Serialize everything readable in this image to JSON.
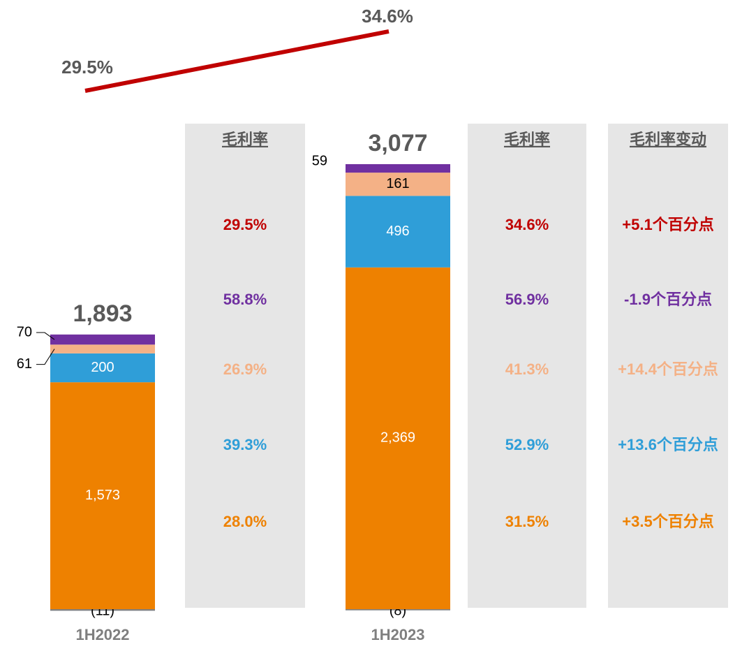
{
  "chart_data": {
    "type": "bar",
    "stacked": true,
    "categories": [
      "1H2022",
      "1H2023"
    ],
    "series": [
      {
        "color": "#808080",
        "values": [
          -11,
          -8
        ],
        "value_labels": [
          "(11)",
          "(8)"
        ]
      },
      {
        "color": "#ee8100",
        "values": [
          1573,
          2369
        ],
        "value_labels": [
          "1,573",
          "2,369"
        ]
      },
      {
        "color": "#2f9ed8",
        "values": [
          200,
          496
        ]
      },
      {
        "color": "#f4b186",
        "values": [
          61,
          161
        ]
      },
      {
        "color": "#7030a0",
        "values": [
          70,
          59
        ]
      }
    ],
    "totals": {
      "values": [
        1893,
        3077
      ],
      "value_labels": [
        "1,893",
        "3,077"
      ]
    },
    "margin_line": {
      "color": "#c00000",
      "values": [
        29.5,
        34.6
      ],
      "value_labels": [
        "29.5%",
        "34.6%"
      ]
    },
    "panels": [
      {
        "header": "毛利率",
        "colors": [
          "#c00000",
          "#7030a0",
          "#f4b186",
          "#2f9ed8",
          "#ee8100"
        ],
        "rows": [
          "29.5%",
          "58.8%",
          "26.9%",
          "39.3%",
          "28.0%"
        ]
      },
      {
        "header": "毛利率",
        "colors": [
          "#c00000",
          "#7030a0",
          "#f4b186",
          "#2f9ed8",
          "#ee8100"
        ],
        "rows": [
          "34.6%",
          "56.9%",
          "41.3%",
          "52.9%",
          "31.5%"
        ]
      },
      {
        "header": "毛利率变动",
        "colors": [
          "#c00000",
          "#7030a0",
          "#f4b186",
          "#2f9ed8",
          "#ee8100"
        ],
        "rows": [
          "+5.1个百分点",
          "-1.9个百分点",
          "+14.4个百分点",
          "+13.6个百分点",
          "+3.5个百分点"
        ]
      }
    ]
  }
}
